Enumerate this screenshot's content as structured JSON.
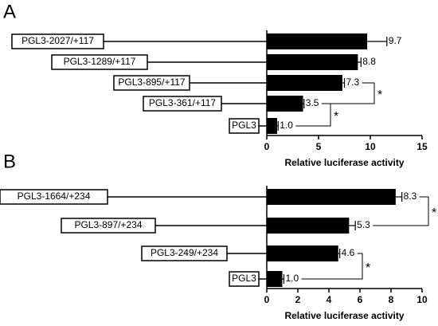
{
  "chart_data": [
    {
      "type": "bar",
      "orientation": "horizontal",
      "panel_label": "A",
      "categories": [
        "PGL3-2027/+117",
        "PGL3-1289/+117",
        "PGL3-895/+117",
        "PGL3-361/+117",
        "PGL3"
      ],
      "values": [
        9.7,
        8.8,
        7.3,
        3.5,
        1.0
      ],
      "value_labels": [
        "9.7",
        "8.8",
        "7.3",
        "3.5",
        "1.0"
      ],
      "errors": [
        1.9,
        0.3,
        0.2,
        0.1,
        0.1
      ],
      "color": "#000000",
      "xlabel": "Relative luciferase activity",
      "xlim": [
        0,
        15
      ],
      "xticks": [
        0,
        5,
        10,
        15
      ],
      "annotations": [
        "*",
        "*"
      ]
    },
    {
      "type": "bar",
      "orientation": "horizontal",
      "panel_label": "B",
      "categories": [
        "PGL3-1664/+234",
        "PGL3-897/+234",
        "PGL3-249/+234",
        "PGL3"
      ],
      "values": [
        8.3,
        5.3,
        4.6,
        1.0
      ],
      "value_labels": [
        "8.3",
        "5.3",
        "4.6",
        "1.0"
      ],
      "errors": [
        0.4,
        0.4,
        0.1,
        0.1
      ],
      "color": "#000000",
      "xlabel": "Relative luciferase activity",
      "xlim": [
        0,
        10
      ],
      "xticks": [
        0,
        2,
        4,
        6,
        8,
        10
      ],
      "annotations": [
        "*",
        "*"
      ]
    }
  ]
}
